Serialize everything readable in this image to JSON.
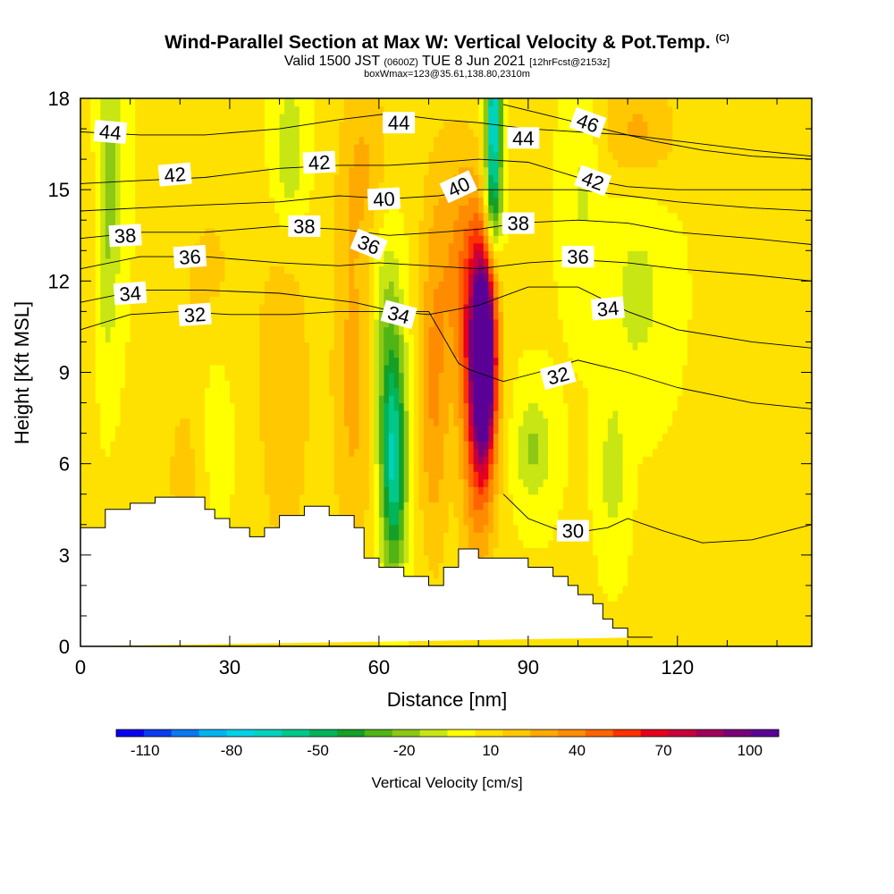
{
  "title": {
    "main": "Wind-Parallel Section at Max W: Vertical Velocity & Pot.Temp.",
    "copyright": "(C)",
    "valid_prefix": "Valid 1500 JST",
    "valid_utc": "(0600Z)",
    "valid_date": "TUE 8 Jun 2021",
    "forecast": "[12hrFcst@2153z]",
    "box": "boxWmax=123@35.61,138.80,2310m"
  },
  "chart_data": {
    "type": "heatmap",
    "xlabel": "Distance [nm]",
    "ylabel": "Height [Kft MSL]",
    "xlim": [
      0,
      147
    ],
    "ylim": [
      0,
      18
    ],
    "xticks": [
      0,
      30,
      60,
      90,
      120
    ],
    "yticks": [
      0,
      3,
      6,
      9,
      12,
      15,
      18
    ],
    "colorbar": {
      "label": "Vertical Velocity [cm/s]",
      "ticks": [
        -110,
        -80,
        -50,
        -20,
        10,
        40,
        70,
        100
      ],
      "range": [
        -120,
        110
      ],
      "colors": [
        "#0a00f0",
        "#0a3cf0",
        "#0a78f0",
        "#00b4f0",
        "#00d2e6",
        "#00d2be",
        "#00c88c",
        "#00b45a",
        "#14a028",
        "#50b414",
        "#8cc814",
        "#c8e614",
        "#ffff00",
        "#ffe100",
        "#ffc800",
        "#ffaa00",
        "#ff8c00",
        "#ff6400",
        "#ff3200",
        "#e6001e",
        "#c8003c",
        "#a0005a",
        "#780078",
        "#5a0096"
      ]
    },
    "terrain_height_kft": {
      "x": [
        0,
        5,
        5,
        10,
        10,
        15,
        15,
        25,
        25,
        27,
        27,
        30,
        30,
        34,
        34,
        37,
        37,
        40,
        40,
        45,
        45,
        50,
        50,
        55,
        55,
        57,
        57,
        60,
        60,
        65,
        65,
        70,
        70,
        73,
        73,
        76,
        76,
        80,
        80,
        85,
        85,
        90,
        90,
        95,
        95,
        98,
        98,
        100,
        100,
        103,
        103,
        105,
        105,
        107,
        107,
        110,
        110,
        115,
        115,
        147
      ],
      "y": [
        3.9,
        3.9,
        4.5,
        4.5,
        4.7,
        4.7,
        4.9,
        4.9,
        4.5,
        4.5,
        4.2,
        4.2,
        3.9,
        3.9,
        3.6,
        3.6,
        3.9,
        3.9,
        4.3,
        4.3,
        4.6,
        4.6,
        4.3,
        4.3,
        3.9,
        3.9,
        2.9,
        2.9,
        2.6,
        2.6,
        2.3,
        2.3,
        2.0,
        2.0,
        2.6,
        2.6,
        3.2,
        3.2,
        2.9,
        2.9,
        2.9,
        2.9,
        2.6,
        2.6,
        2.3,
        2.3,
        2.0,
        2.0,
        1.7,
        1.7,
        1.4,
        1.4,
        0.9,
        0.9,
        0.6,
        0.6,
        0.3,
        0.3,
        0.3
      ]
    },
    "velocity_features": [
      {
        "x": 81,
        "y": 9.5,
        "sx": 1.6,
        "sy": 2.2,
        "w": 120
      },
      {
        "x": 80,
        "y": 7.5,
        "sx": 2.6,
        "sy": 3.5,
        "w": 45
      },
      {
        "x": 79,
        "y": 11.5,
        "sx": 3.0,
        "sy": 2.5,
        "w": 25
      },
      {
        "x": 71,
        "y": 8.0,
        "sx": 2.2,
        "sy": 3.8,
        "w": 28
      },
      {
        "x": 55,
        "y": 9.0,
        "sx": 3.2,
        "sy": 5.0,
        "w": 22
      },
      {
        "x": 41,
        "y": 8.5,
        "sx": 4.0,
        "sy": 4.5,
        "w": 18
      },
      {
        "x": 22,
        "y": 5.5,
        "sx": 5.0,
        "sy": 2.5,
        "w": 12
      },
      {
        "x": 26,
        "y": 12.0,
        "sx": 5.0,
        "sy": 2.5,
        "w": 12
      },
      {
        "x": 75,
        "y": 13.5,
        "sx": 4.0,
        "sy": 3.0,
        "w": 18
      },
      {
        "x": 112,
        "y": 17.0,
        "sx": 6.0,
        "sy": 1.2,
        "w": 20
      },
      {
        "x": 58,
        "y": 16.0,
        "sx": 4.0,
        "sy": 2.0,
        "w": 15
      },
      {
        "x": 2,
        "y": 12.5,
        "sx": 1.8,
        "sy": 2.5,
        "w": 10
      },
      {
        "x": 63,
        "y": 5.8,
        "sx": 1.7,
        "sy": 2.5,
        "w": -55
      },
      {
        "x": 62,
        "y": 8.0,
        "sx": 2.2,
        "sy": 3.0,
        "w": -22
      },
      {
        "x": 61,
        "y": 11.5,
        "sx": 2.5,
        "sy": 2.5,
        "w": -12
      },
      {
        "x": 83,
        "y": 17.5,
        "sx": 1.1,
        "sy": 2.3,
        "w": -75
      },
      {
        "x": 83,
        "y": 14.5,
        "sx": 1.3,
        "sy": 1.5,
        "w": -28
      },
      {
        "x": 6,
        "y": 16.0,
        "sx": 1.8,
        "sy": 3.0,
        "w": -22
      },
      {
        "x": 5,
        "y": 11.5,
        "sx": 1.5,
        "sy": 2.0,
        "w": -12
      },
      {
        "x": 42,
        "y": 16.0,
        "sx": 2.5,
        "sy": 2.0,
        "w": -20
      },
      {
        "x": 27,
        "y": 7.0,
        "sx": 2.5,
        "sy": 2.5,
        "w": -14
      },
      {
        "x": 91,
        "y": 6.5,
        "sx": 2.5,
        "sy": 1.2,
        "w": -22
      },
      {
        "x": 107,
        "y": 5.8,
        "sx": 1.7,
        "sy": 1.6,
        "w": -18
      },
      {
        "x": 112,
        "y": 11.5,
        "sx": 4.0,
        "sy": 2.0,
        "w": -14
      },
      {
        "x": 101,
        "y": 15.5,
        "sx": 2.5,
        "sy": 2.5,
        "w": -12
      }
    ],
    "theta_contours": [
      {
        "label": "30",
        "points": [
          [
            85,
            5.0
          ],
          [
            90,
            4.2
          ],
          [
            98,
            3.7
          ],
          [
            106,
            3.9
          ],
          [
            110,
            4.2
          ],
          [
            117,
            3.8
          ],
          [
            125,
            3.4
          ],
          [
            135,
            3.5
          ],
          [
            147,
            4.0
          ]
        ]
      },
      {
        "label": "32",
        "points": [
          [
            0,
            10.4
          ],
          [
            10,
            10.9
          ],
          [
            20,
            11.0
          ],
          [
            30,
            10.9
          ],
          [
            42,
            10.9
          ],
          [
            52,
            11.0
          ],
          [
            62,
            11.0
          ],
          [
            70,
            11.0
          ],
          [
            76,
            9.3
          ],
          [
            78,
            9.1
          ],
          [
            85,
            8.7
          ],
          [
            92,
            9.0
          ],
          [
            100,
            9.4
          ],
          [
            110,
            9.0
          ],
          [
            120,
            8.5
          ],
          [
            135,
            8.0
          ],
          [
            147,
            7.8
          ]
        ]
      },
      {
        "label": "34",
        "points": [
          [
            0,
            11.3
          ],
          [
            12,
            11.7
          ],
          [
            25,
            11.7
          ],
          [
            40,
            11.6
          ],
          [
            55,
            11.3
          ],
          [
            63,
            11.0
          ],
          [
            70,
            10.9
          ],
          [
            80,
            11.2
          ],
          [
            90,
            11.8
          ],
          [
            100,
            11.8
          ],
          [
            110,
            11.0
          ],
          [
            120,
            10.4
          ],
          [
            135,
            10.0
          ],
          [
            147,
            9.8
          ]
        ]
      },
      {
        "label": "36",
        "points": [
          [
            0,
            12.4
          ],
          [
            12,
            12.8
          ],
          [
            25,
            12.8
          ],
          [
            40,
            12.6
          ],
          [
            52,
            12.5
          ],
          [
            60,
            12.6
          ],
          [
            70,
            12.5
          ],
          [
            80,
            12.4
          ],
          [
            90,
            12.6
          ],
          [
            100,
            12.7
          ],
          [
            110,
            12.6
          ],
          [
            120,
            12.4
          ],
          [
            135,
            12.2
          ],
          [
            147,
            12.0
          ]
        ]
      },
      {
        "label": "38",
        "points": [
          [
            0,
            13.4
          ],
          [
            12,
            13.6
          ],
          [
            25,
            13.6
          ],
          [
            40,
            13.8
          ],
          [
            52,
            13.7
          ],
          [
            62,
            13.5
          ],
          [
            72,
            13.6
          ],
          [
            80,
            13.7
          ],
          [
            88,
            13.9
          ],
          [
            100,
            14.0
          ],
          [
            110,
            13.9
          ],
          [
            120,
            13.6
          ],
          [
            135,
            13.4
          ],
          [
            147,
            13.2
          ]
        ]
      },
      {
        "label": "40",
        "points": [
          [
            0,
            14.3
          ],
          [
            12,
            14.4
          ],
          [
            25,
            14.5
          ],
          [
            40,
            14.6
          ],
          [
            52,
            14.8
          ],
          [
            62,
            14.7
          ],
          [
            72,
            14.8
          ],
          [
            80,
            15.0
          ],
          [
            90,
            15.0
          ],
          [
            100,
            15.0
          ],
          [
            110,
            14.8
          ],
          [
            120,
            14.6
          ],
          [
            135,
            14.4
          ],
          [
            147,
            14.3
          ]
        ]
      },
      {
        "label": "42",
        "points": [
          [
            0,
            15.2
          ],
          [
            12,
            15.3
          ],
          [
            25,
            15.4
          ],
          [
            40,
            15.7
          ],
          [
            52,
            15.8
          ],
          [
            62,
            15.8
          ],
          [
            72,
            15.9
          ],
          [
            80,
            16.0
          ],
          [
            90,
            15.9
          ],
          [
            100,
            15.4
          ],
          [
            110,
            15.1
          ],
          [
            120,
            15.0
          ],
          [
            135,
            15.0
          ],
          [
            147,
            15.0
          ]
        ]
      },
      {
        "label": "44",
        "points": [
          [
            0,
            16.9
          ],
          [
            12,
            16.8
          ],
          [
            25,
            16.8
          ],
          [
            40,
            17.0
          ],
          [
            52,
            17.3
          ],
          [
            62,
            17.5
          ],
          [
            72,
            17.3
          ],
          [
            80,
            17.2
          ],
          [
            90,
            17.0
          ],
          [
            100,
            16.9
          ],
          [
            110,
            16.8
          ],
          [
            120,
            16.6
          ],
          [
            135,
            16.3
          ],
          [
            147,
            16.1
          ]
        ]
      },
      {
        "label": "46",
        "points": [
          [
            85,
            17.8
          ],
          [
            95,
            17.4
          ],
          [
            105,
            17.0
          ],
          [
            115,
            16.6
          ],
          [
            125,
            16.3
          ],
          [
            135,
            16.1
          ],
          [
            147,
            16.0
          ]
        ]
      }
    ],
    "theta_labels": [
      {
        "text": "44",
        "x": 6,
        "y": 16.9,
        "rot": 5
      },
      {
        "text": "44",
        "x": 64,
        "y": 17.2,
        "rot": 0
      },
      {
        "text": "44",
        "x": 89,
        "y": 16.7,
        "rot": 0
      },
      {
        "text": "46",
        "x": 102,
        "y": 17.2,
        "rot": 20
      },
      {
        "text": "42",
        "x": 19,
        "y": 15.5,
        "rot": -5
      },
      {
        "text": "42",
        "x": 48,
        "y": 15.9,
        "rot": -3
      },
      {
        "text": "42",
        "x": 103,
        "y": 15.3,
        "rot": 20
      },
      {
        "text": "40",
        "x": 61,
        "y": 14.7,
        "rot": -3
      },
      {
        "text": "40",
        "x": 76,
        "y": 15.1,
        "rot": -25
      },
      {
        "text": "38",
        "x": 9,
        "y": 13.5,
        "rot": -3
      },
      {
        "text": "38",
        "x": 45,
        "y": 13.8,
        "rot": 0
      },
      {
        "text": "38",
        "x": 88,
        "y": 13.9,
        "rot": 0
      },
      {
        "text": "36",
        "x": 22,
        "y": 12.8,
        "rot": -4
      },
      {
        "text": "36",
        "x": 58,
        "y": 13.2,
        "rot": 22
      },
      {
        "text": "36",
        "x": 100,
        "y": 12.8,
        "rot": 0
      },
      {
        "text": "34",
        "x": 10,
        "y": 11.6,
        "rot": -4
      },
      {
        "text": "34",
        "x": 64,
        "y": 10.9,
        "rot": 15
      },
      {
        "text": "34",
        "x": 106,
        "y": 11.1,
        "rot": -5
      },
      {
        "text": "32",
        "x": 23,
        "y": 10.9,
        "rot": -4
      },
      {
        "text": "32",
        "x": 96,
        "y": 8.9,
        "rot": -15
      },
      {
        "text": "30",
        "x": 99,
        "y": 3.8,
        "rot": 0
      }
    ]
  }
}
